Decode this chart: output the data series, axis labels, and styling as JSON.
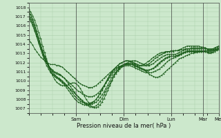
{
  "bg_color": "#cce8cc",
  "grid_color": "#aacfaa",
  "line_color": "#1a5c1a",
  "xlabel": "Pression niveau de la mer( hPa )",
  "ylim": [
    1006.5,
    1018.5
  ],
  "yticks": [
    1007,
    1008,
    1009,
    1010,
    1011,
    1012,
    1013,
    1014,
    1015,
    1016,
    1017,
    1018
  ],
  "day_labels": [
    "Sam",
    "Dim",
    "Lun",
    "Mar",
    "Mer"
  ],
  "day_positions": [
    0.25,
    0.5,
    0.75,
    0.9167,
    1.0
  ],
  "num_steps": 97,
  "series": [
    [
      1017.8,
      1017.5,
      1017.1,
      1016.6,
      1016.0,
      1015.3,
      1014.6,
      1013.8,
      1013.1,
      1012.4,
      1011.7,
      1011.1,
      1010.6,
      1010.2,
      1009.9,
      1009.7,
      1009.6,
      1009.5,
      1009.5,
      1009.5,
      1009.6,
      1009.7,
      1009.8,
      1009.8,
      1009.7,
      1009.5,
      1009.2,
      1008.8,
      1008.4,
      1008.0,
      1007.7,
      1007.4,
      1007.2,
      1007.1,
      1007.1,
      1007.2,
      1007.4,
      1007.7,
      1008.1,
      1008.5,
      1009.0,
      1009.5,
      1010.0,
      1010.5,
      1010.9,
      1011.2,
      1011.5,
      1011.7,
      1011.8,
      1011.9,
      1011.9,
      1011.9,
      1011.8,
      1011.7,
      1011.6,
      1011.5,
      1011.4,
      1011.3,
      1011.2,
      1011.1,
      1010.9,
      1010.7,
      1010.6,
      1010.5,
      1010.4,
      1010.4,
      1010.5,
      1010.6,
      1010.8,
      1011.0,
      1011.2,
      1011.4,
      1011.6,
      1011.8,
      1012.0,
      1012.2,
      1012.4,
      1012.5,
      1012.6,
      1012.7,
      1012.8,
      1012.9,
      1013.0,
      1013.0,
      1013.1,
      1013.1,
      1013.2,
      1013.2,
      1013.2,
      1013.2,
      1013.1,
      1013.0,
      1013.0,
      1013.1,
      1013.2,
      1013.3,
      1013.4
    ],
    [
      1017.5,
      1017.2,
      1016.7,
      1016.1,
      1015.4,
      1014.7,
      1014.0,
      1013.3,
      1012.7,
      1012.2,
      1011.7,
      1011.3,
      1011.0,
      1010.7,
      1010.5,
      1010.3,
      1010.1,
      1009.9,
      1009.7,
      1009.5,
      1009.3,
      1009.1,
      1008.9,
      1008.7,
      1008.5,
      1008.3,
      1008.0,
      1007.8,
      1007.6,
      1007.4,
      1007.3,
      1007.2,
      1007.2,
      1007.2,
      1007.3,
      1007.5,
      1007.8,
      1008.1,
      1008.5,
      1008.9,
      1009.3,
      1009.7,
      1010.1,
      1010.5,
      1010.8,
      1011.1,
      1011.3,
      1011.5,
      1011.6,
      1011.7,
      1011.7,
      1011.7,
      1011.6,
      1011.5,
      1011.4,
      1011.3,
      1011.2,
      1011.1,
      1011.0,
      1010.9,
      1010.9,
      1010.9,
      1010.9,
      1011.0,
      1011.1,
      1011.2,
      1011.3,
      1011.5,
      1011.7,
      1011.9,
      1012.1,
      1012.3,
      1012.4,
      1012.5,
      1012.6,
      1012.7,
      1012.8,
      1012.9,
      1013.0,
      1013.1,
      1013.2,
      1013.2,
      1013.2,
      1013.2,
      1013.2,
      1013.2,
      1013.2,
      1013.2,
      1013.2,
      1013.2,
      1013.2,
      1013.1,
      1013.1,
      1013.2,
      1013.3,
      1013.4,
      1013.5
    ],
    [
      1017.2,
      1016.9,
      1016.4,
      1015.8,
      1015.1,
      1014.4,
      1013.7,
      1013.1,
      1012.5,
      1012.1,
      1011.7,
      1011.4,
      1011.2,
      1011.0,
      1010.9,
      1010.8,
      1010.7,
      1010.5,
      1010.3,
      1010.0,
      1009.7,
      1009.4,
      1009.1,
      1008.8,
      1008.5,
      1008.3,
      1008.1,
      1007.9,
      1007.7,
      1007.6,
      1007.5,
      1007.5,
      1007.5,
      1007.6,
      1007.7,
      1007.9,
      1008.2,
      1008.5,
      1008.8,
      1009.2,
      1009.6,
      1010.0,
      1010.4,
      1010.7,
      1011.0,
      1011.2,
      1011.4,
      1011.6,
      1011.7,
      1011.8,
      1011.9,
      1011.9,
      1011.9,
      1011.8,
      1011.7,
      1011.6,
      1011.5,
      1011.4,
      1011.3,
      1011.2,
      1011.2,
      1011.2,
      1011.3,
      1011.4,
      1011.5,
      1011.7,
      1011.9,
      1012.1,
      1012.3,
      1012.4,
      1012.5,
      1012.6,
      1012.7,
      1012.7,
      1012.7,
      1012.8,
      1012.9,
      1013.0,
      1013.1,
      1013.2,
      1013.3,
      1013.3,
      1013.3,
      1013.3,
      1013.3,
      1013.3,
      1013.3,
      1013.3,
      1013.3,
      1013.3,
      1013.3,
      1013.2,
      1013.2,
      1013.3,
      1013.4,
      1013.5,
      1013.6
    ],
    [
      1016.8,
      1016.5,
      1016.0,
      1015.4,
      1014.8,
      1014.1,
      1013.5,
      1012.9,
      1012.4,
      1012.0,
      1011.6,
      1011.3,
      1011.1,
      1010.9,
      1010.8,
      1010.7,
      1010.6,
      1010.5,
      1010.3,
      1010.1,
      1009.9,
      1009.7,
      1009.5,
      1009.3,
      1009.1,
      1008.9,
      1008.8,
      1008.6,
      1008.5,
      1008.4,
      1008.3,
      1008.3,
      1008.3,
      1008.4,
      1008.5,
      1008.7,
      1008.9,
      1009.2,
      1009.5,
      1009.8,
      1010.1,
      1010.4,
      1010.7,
      1011.0,
      1011.2,
      1011.4,
      1011.5,
      1011.6,
      1011.7,
      1011.8,
      1011.8,
      1011.8,
      1011.8,
      1011.7,
      1011.6,
      1011.5,
      1011.4,
      1011.3,
      1011.2,
      1011.1,
      1011.1,
      1011.2,
      1011.3,
      1011.4,
      1011.6,
      1011.8,
      1012.0,
      1012.2,
      1012.3,
      1012.5,
      1012.6,
      1012.7,
      1012.7,
      1012.7,
      1012.7,
      1012.7,
      1012.8,
      1012.9,
      1013.0,
      1013.1,
      1013.2,
      1013.2,
      1013.2,
      1013.2,
      1013.2,
      1013.2,
      1013.2,
      1013.2,
      1013.2,
      1013.3,
      1013.3,
      1013.3,
      1013.3,
      1013.3,
      1013.4,
      1013.5,
      1013.6
    ],
    [
      1014.5,
      1014.2,
      1013.9,
      1013.5,
      1013.2,
      1012.9,
      1012.6,
      1012.4,
      1012.2,
      1012.0,
      1011.9,
      1011.8,
      1011.8,
      1011.8,
      1011.7,
      1011.7,
      1011.6,
      1011.5,
      1011.3,
      1011.1,
      1010.9,
      1010.7,
      1010.5,
      1010.3,
      1010.1,
      1009.9,
      1009.7,
      1009.6,
      1009.5,
      1009.4,
      1009.3,
      1009.3,
      1009.3,
      1009.4,
      1009.5,
      1009.7,
      1009.9,
      1010.1,
      1010.3,
      1010.5,
      1010.7,
      1010.9,
      1011.1,
      1011.3,
      1011.4,
      1011.5,
      1011.6,
      1011.7,
      1011.8,
      1011.9,
      1012.0,
      1012.1,
      1012.2,
      1012.2,
      1012.2,
      1012.1,
      1012.0,
      1011.9,
      1011.8,
      1011.7,
      1011.7,
      1011.7,
      1011.8,
      1011.9,
      1012.1,
      1012.3,
      1012.4,
      1012.6,
      1012.7,
      1012.8,
      1012.9,
      1012.9,
      1012.9,
      1012.9,
      1012.9,
      1013.0,
      1013.1,
      1013.2,
      1013.3,
      1013.4,
      1013.5,
      1013.5,
      1013.5,
      1013.5,
      1013.5,
      1013.5,
      1013.5,
      1013.5,
      1013.5,
      1013.5,
      1013.5,
      1013.4,
      1013.4,
      1013.4,
      1013.5,
      1013.5,
      1013.6
    ],
    [
      1017.5,
      1017.2,
      1016.7,
      1016.1,
      1015.4,
      1014.7,
      1013.9,
      1013.2,
      1012.6,
      1012.0,
      1011.5,
      1011.1,
      1010.8,
      1010.6,
      1010.4,
      1010.3,
      1010.2,
      1010.0,
      1009.8,
      1009.6,
      1009.3,
      1009.0,
      1008.7,
      1008.4,
      1008.2,
      1008.0,
      1007.8,
      1007.7,
      1007.6,
      1007.5,
      1007.5,
      1007.6,
      1007.7,
      1007.8,
      1008.0,
      1008.3,
      1008.6,
      1009.0,
      1009.4,
      1009.8,
      1010.2,
      1010.6,
      1010.9,
      1011.2,
      1011.5,
      1011.7,
      1011.9,
      1012.0,
      1012.1,
      1012.2,
      1012.2,
      1012.2,
      1012.1,
      1012.0,
      1011.9,
      1011.8,
      1011.7,
      1011.7,
      1011.7,
      1011.7,
      1011.8,
      1011.9,
      1012.1,
      1012.3,
      1012.5,
      1012.6,
      1012.8,
      1012.9,
      1013.0,
      1013.1,
      1013.2,
      1013.2,
      1013.3,
      1013.3,
      1013.3,
      1013.3,
      1013.3,
      1013.4,
      1013.4,
      1013.5,
      1013.5,
      1013.5,
      1013.6,
      1013.6,
      1013.6,
      1013.6,
      1013.6,
      1013.6,
      1013.6,
      1013.6,
      1013.5,
      1013.5,
      1013.5,
      1013.5,
      1013.6,
      1013.7,
      1013.8
    ],
    [
      1017.0,
      1016.7,
      1016.2,
      1015.6,
      1014.9,
      1014.2,
      1013.5,
      1012.8,
      1012.2,
      1011.7,
      1011.3,
      1010.9,
      1010.7,
      1010.5,
      1010.3,
      1010.2,
      1010.0,
      1009.8,
      1009.6,
      1009.3,
      1009.0,
      1008.7,
      1008.4,
      1008.1,
      1007.9,
      1007.7,
      1007.6,
      1007.5,
      1007.4,
      1007.4,
      1007.4,
      1007.5,
      1007.6,
      1007.8,
      1008.0,
      1008.3,
      1008.7,
      1009.1,
      1009.5,
      1009.9,
      1010.3,
      1010.7,
      1011.0,
      1011.3,
      1011.5,
      1011.7,
      1011.9,
      1012.0,
      1012.1,
      1012.2,
      1012.2,
      1012.1,
      1012.0,
      1011.9,
      1011.8,
      1011.7,
      1011.7,
      1011.7,
      1011.8,
      1011.9,
      1012.1,
      1012.2,
      1012.4,
      1012.6,
      1012.7,
      1012.9,
      1013.0,
      1013.1,
      1013.1,
      1013.2,
      1013.2,
      1013.2,
      1013.2,
      1013.2,
      1013.3,
      1013.3,
      1013.4,
      1013.5,
      1013.6,
      1013.7,
      1013.8,
      1013.8,
      1013.8,
      1013.8,
      1013.8,
      1013.8,
      1013.8,
      1013.7,
      1013.7,
      1013.6,
      1013.5,
      1013.4,
      1013.4,
      1013.5,
      1013.6,
      1013.7,
      1013.8
    ]
  ]
}
